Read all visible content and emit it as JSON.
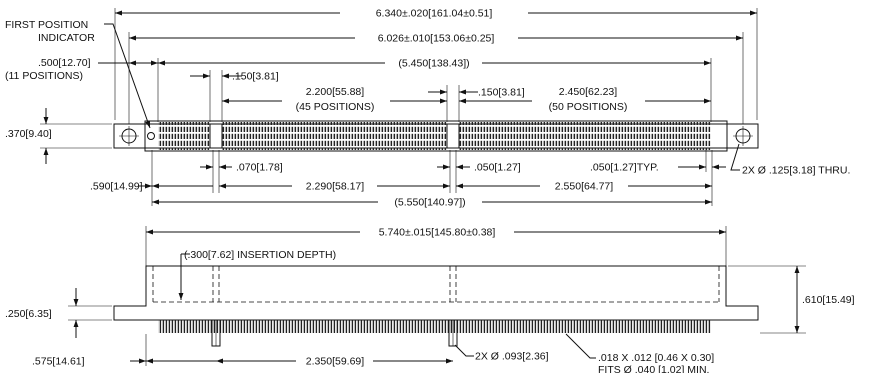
{
  "top_view": {
    "overall_length": "6.340±.020[161.04±0.51]",
    "mount_hole_spacing": "6.026±.010[153.06±0.25]",
    "first_position_line1": "FIRST POSITION",
    "first_position_line2": "INDICATOR",
    "end_to_key_line1": ".500[12.70]",
    "end_to_key_line2": "(11 POSITIONS)",
    "contact_span": "(5.450[138.43])",
    "key_width_a": ".150[3.81]",
    "key_width_b": ".150[3.81]",
    "section_b_line1": "2.200[55.88]",
    "section_b_line2": "(45 POSITIONS)",
    "section_c_line1": "2.450[62.23]",
    "section_c_line2": "(50 POSITIONS)",
    "body_width": ".370[9.40]",
    "key_pitch_a": ".070[1.78]",
    "key_pitch_b": ".050[1.27]",
    "pitch_typ": ".050[1.27]TYP.",
    "mount_hole_note": "2X Ø .125[3.18] THRU.",
    "end_to_key_a": ".590[14.99]",
    "key_to_key": "2.290[58.17]",
    "key_to_end": "2.550[64.77]",
    "pin_span": "(5.550[140.97])"
  },
  "side_view": {
    "body_length": "5.740±.015[145.80±0.38]",
    "insertion_depth": "(.300[7.62] INSERTION DEPTH)",
    "overall_height": ".610[15.49]",
    "flange_height": ".250[6.35]",
    "end_to_peg": ".575[14.61]",
    "peg_spacing": "2.350[59.69]",
    "peg_note": "2X Ø .093[2.36]",
    "pin_note_line1": ".018 X .012 [0.46 X 0.30]",
    "pin_note_line2": "FITS Ø .040 [1.02] MIN."
  }
}
